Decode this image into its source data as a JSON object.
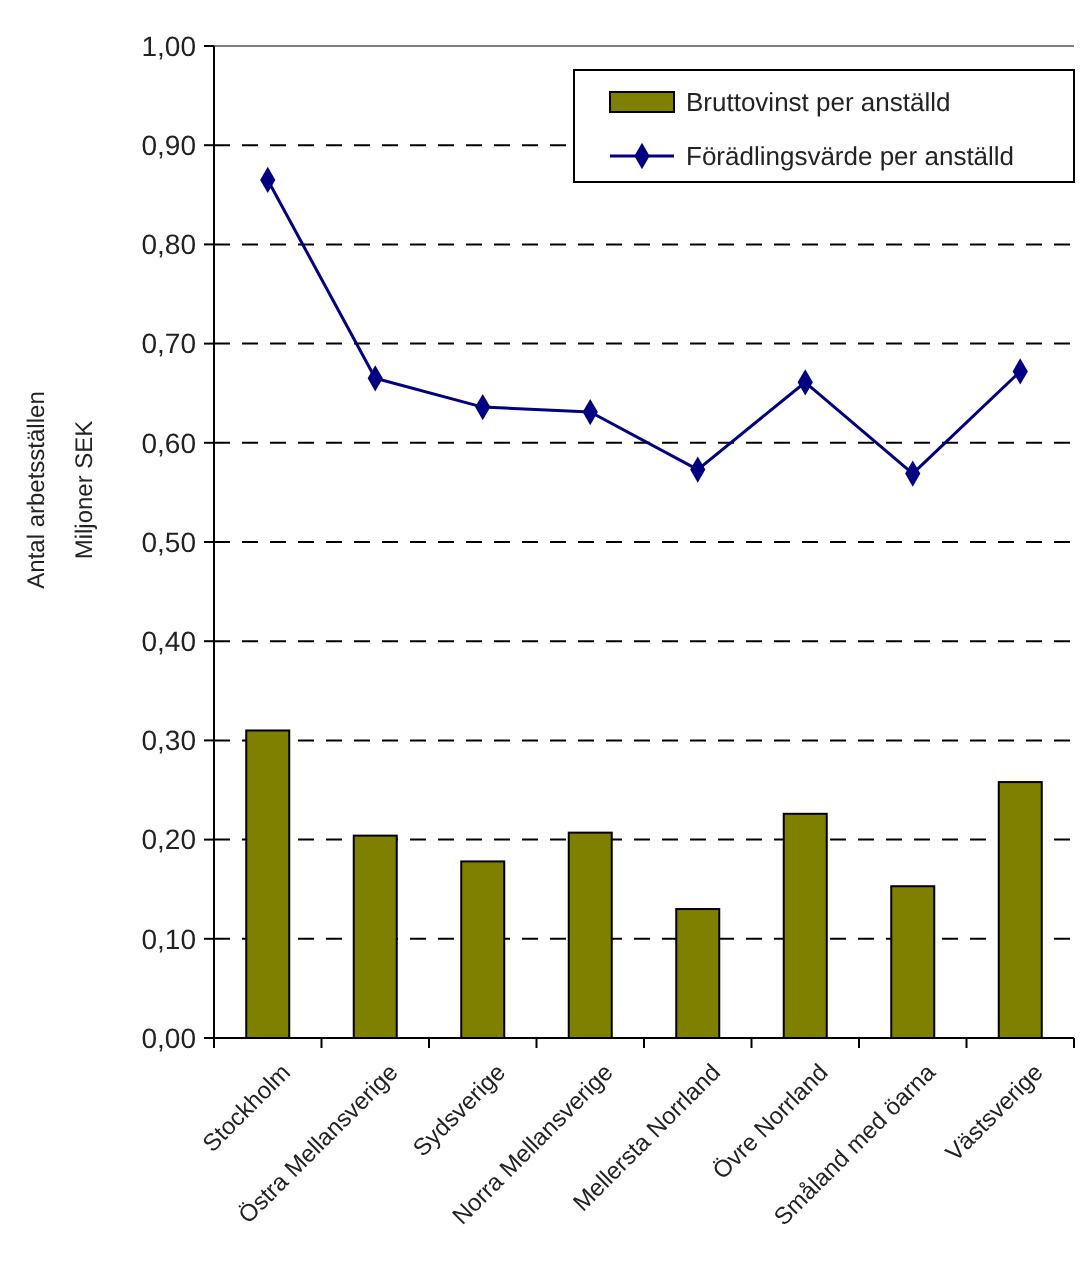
{
  "chart_data": {
    "type": "bar",
    "ylabel": "Antal arbetsställen\nMiljoner SEK",
    "categories": [
      "Stockholm",
      "Östra Mellansverige",
      "Sydsverige",
      "Norra Mellansverige",
      "Mellersta Norrland",
      "Övre Norrland",
      "Småland med öarna",
      "Västsverige"
    ],
    "series": [
      {
        "name": "Bruttovinst per anställd",
        "color": "#808000",
        "values": [
          0.31,
          0.204,
          0.178,
          0.207,
          0.13,
          0.226,
          0.153,
          0.258
        ]
      },
      {
        "name": "Förädlingsvärde per anställd",
        "type": "line",
        "color": "#000080",
        "marker": "diamond",
        "values": [
          0.865,
          0.665,
          0.636,
          0.631,
          0.573,
          0.661,
          0.569,
          0.672
        ]
      }
    ],
    "ylim": [
      0,
      1
    ],
    "yticks": [
      {
        "value": 0,
        "label": "0,00"
      },
      {
        "value": 0.1,
        "label": "0,10"
      },
      {
        "value": 0.2,
        "label": "0,20"
      },
      {
        "value": 0.3,
        "label": "0,30"
      },
      {
        "value": 0.4,
        "label": "0,40"
      },
      {
        "value": 0.5,
        "label": "0,50"
      },
      {
        "value": 0.6,
        "label": "0,60"
      },
      {
        "value": 0.7,
        "label": "0,70"
      },
      {
        "value": 0.8,
        "label": "0,80"
      },
      {
        "value": 0.9,
        "label": "0,90"
      },
      {
        "value": 1,
        "label": "1,00"
      }
    ],
    "grid": "y",
    "legend": "top right"
  }
}
